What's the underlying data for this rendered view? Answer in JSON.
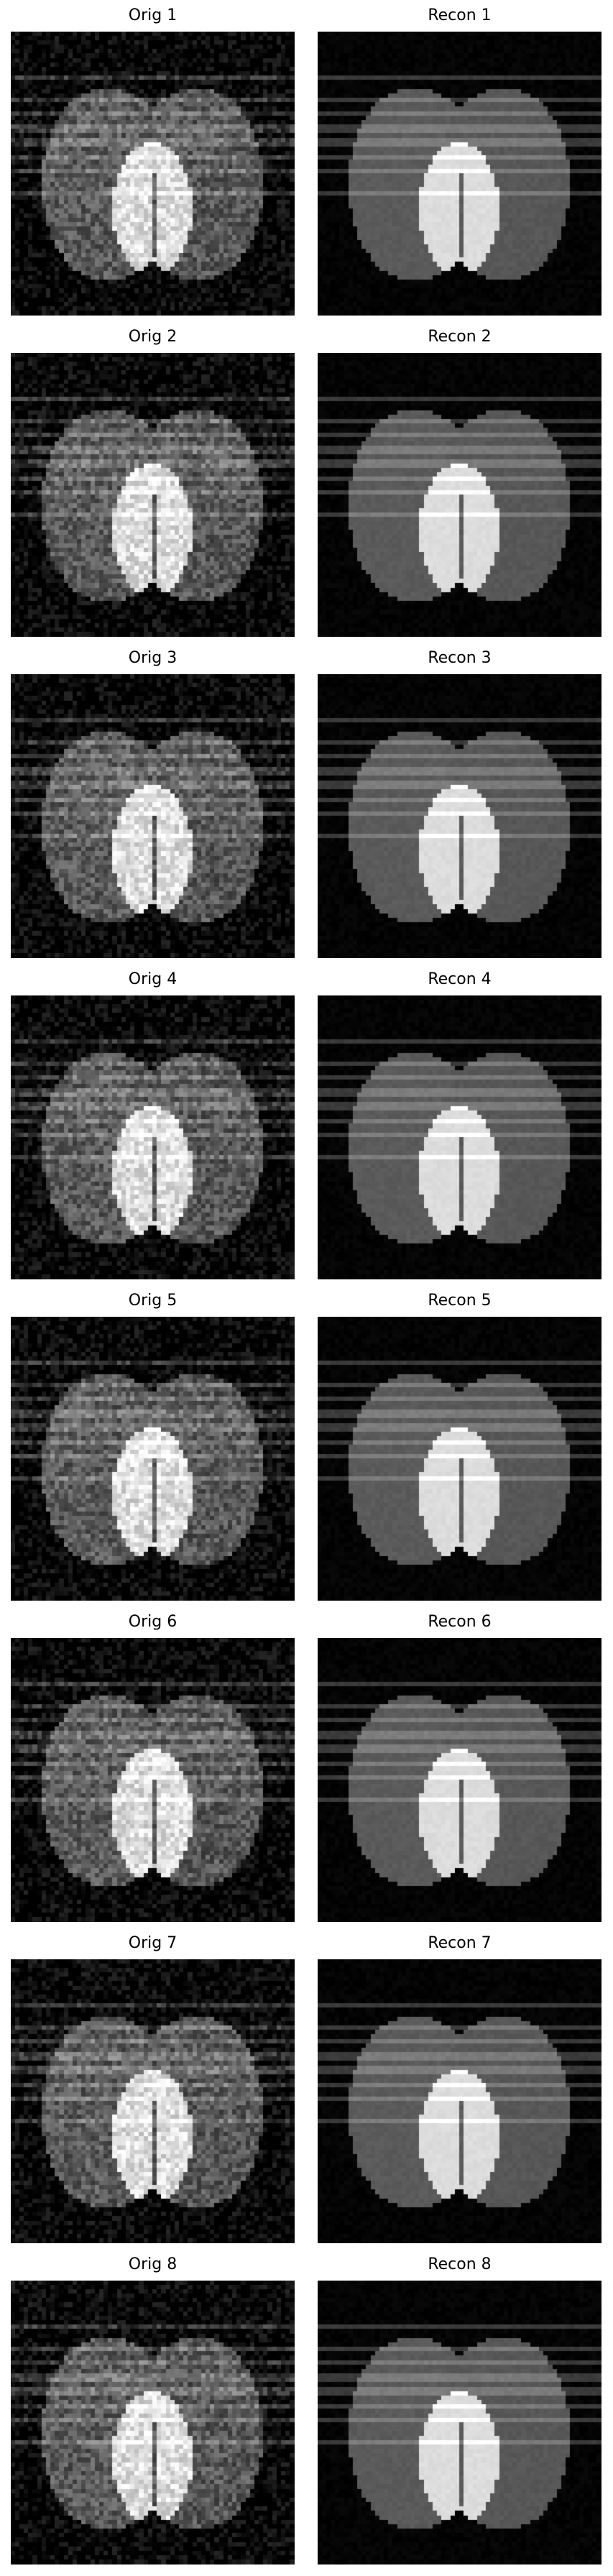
{
  "panels": [
    {
      "orig_title": "Orig 1",
      "recon_title": "Recon 1"
    },
    {
      "orig_title": "Orig 2",
      "recon_title": "Recon 2"
    },
    {
      "orig_title": "Orig 3",
      "recon_title": "Recon 3"
    },
    {
      "orig_title": "Orig 4",
      "recon_title": "Recon 4"
    },
    {
      "orig_title": "Orig 5",
      "recon_title": "Recon 5"
    },
    {
      "orig_title": "Orig 6",
      "recon_title": "Recon 6"
    },
    {
      "orig_title": "Orig 7",
      "recon_title": "Recon 7"
    },
    {
      "orig_title": "Orig 8",
      "recon_title": "Recon 8"
    }
  ],
  "colors": {
    "background": "#000000",
    "left_lobe": "#5a5a5a",
    "right_lobe": "#575757",
    "bright_region": "#dcdcdc",
    "stripe": "#8a8a8a"
  }
}
